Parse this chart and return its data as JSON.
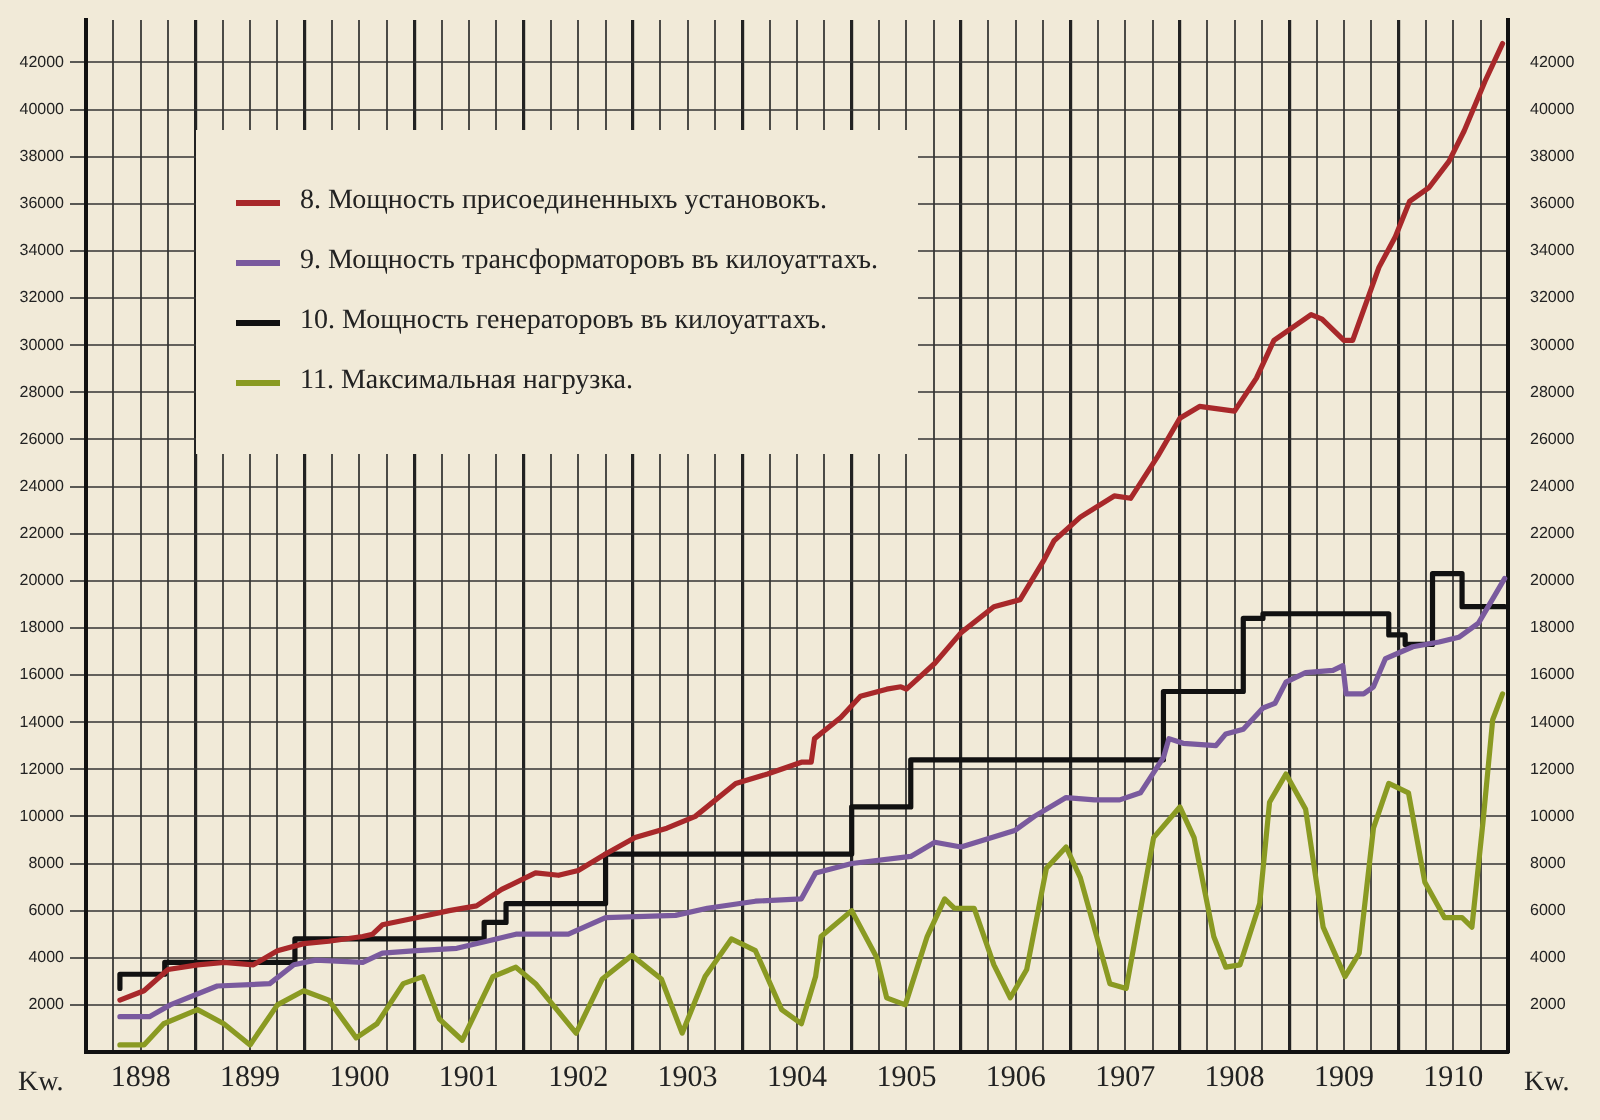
{
  "chart_data": {
    "type": "line",
    "ylabel": "Kw.",
    "y2label": "Kw.",
    "xlim": [
      1898,
      1911
    ],
    "xticks": [
      {
        "value": 1898,
        "label": null
      },
      {
        "value": 1898.25,
        "label": null
      },
      {
        "value": 1898.5,
        "label": "1898"
      },
      {
        "value": 1898.75,
        "label": null
      },
      {
        "value": 1899,
        "label": null
      },
      {
        "value": 1899.25,
        "label": null
      },
      {
        "value": 1899.5,
        "label": "1899"
      },
      {
        "value": 1899.75,
        "label": null
      },
      {
        "value": 1900,
        "label": null
      },
      {
        "value": 1900.25,
        "label": null
      },
      {
        "value": 1900.5,
        "label": "1900"
      },
      {
        "value": 1900.75,
        "label": null
      },
      {
        "value": 1901,
        "label": null
      },
      {
        "value": 1901.25,
        "label": null
      },
      {
        "value": 1901.5,
        "label": "1901"
      },
      {
        "value": 1901.75,
        "label": null
      },
      {
        "value": 1902,
        "label": null
      },
      {
        "value": 1902.25,
        "label": null
      },
      {
        "value": 1902.5,
        "label": "1902"
      },
      {
        "value": 1902.75,
        "label": null
      },
      {
        "value": 1903,
        "label": null
      },
      {
        "value": 1903.25,
        "label": null
      },
      {
        "value": 1903.5,
        "label": "1903"
      },
      {
        "value": 1903.75,
        "label": null
      },
      {
        "value": 1904,
        "label": null
      },
      {
        "value": 1904.25,
        "label": null
      },
      {
        "value": 1904.5,
        "label": "1904"
      },
      {
        "value": 1904.75,
        "label": null
      },
      {
        "value": 1905,
        "label": null
      },
      {
        "value": 1905.25,
        "label": null
      },
      {
        "value": 1905.5,
        "label": "1905"
      },
      {
        "value": 1905.75,
        "label": null
      },
      {
        "value": 1906,
        "label": null
      },
      {
        "value": 1906.25,
        "label": null
      },
      {
        "value": 1906.5,
        "label": "1906"
      },
      {
        "value": 1906.75,
        "label": null
      },
      {
        "value": 1907,
        "label": null
      },
      {
        "value": 1907.25,
        "label": null
      },
      {
        "value": 1907.5,
        "label": "1907"
      },
      {
        "value": 1907.75,
        "label": null
      },
      {
        "value": 1908,
        "label": null
      },
      {
        "value": 1908.25,
        "label": null
      },
      {
        "value": 1908.5,
        "label": "1908"
      },
      {
        "value": 1908.75,
        "label": null
      },
      {
        "value": 1909,
        "label": null
      },
      {
        "value": 1909.25,
        "label": null
      },
      {
        "value": 1909.5,
        "label": "1909"
      },
      {
        "value": 1909.75,
        "label": null
      },
      {
        "value": 1910,
        "label": null
      },
      {
        "value": 1910.25,
        "label": null
      },
      {
        "value": 1910.5,
        "label": "1910"
      },
      {
        "value": 1910.75,
        "label": null
      },
      {
        "value": 1911,
        "label": null
      }
    ],
    "ylim": [
      0,
      43800
    ],
    "yticks": [
      2000,
      4000,
      6000,
      8000,
      10000,
      12000,
      14000,
      16000,
      18000,
      20000,
      22000,
      24000,
      26000,
      28000,
      30000,
      32000,
      34000,
      36000,
      38000,
      40000,
      42000
    ],
    "y2lim": [
      0,
      43800
    ],
    "y2ticks": [
      2000,
      4000,
      6000,
      8000,
      10000,
      12000,
      14000,
      16000,
      18000,
      20000,
      22000,
      24000,
      26000,
      28000,
      30000,
      32000,
      34000,
      36000,
      38000,
      40000,
      42000
    ],
    "grid": true,
    "legend": "top left",
    "marker": "none",
    "line_style": "solid",
    "series": [
      {
        "name": "8. Мощность присоединенныхъ установокъ.",
        "type": "line",
        "color": "#a8282a",
        "x": [
          1898.31,
          1898.53,
          1898.75,
          1899.02,
          1899.26,
          1899.53,
          1899.75,
          1899.99,
          1900.22,
          1900.53,
          1900.62,
          1900.71,
          1901.02,
          1901.32,
          1901.57,
          1901.8,
          1902.11,
          1902.32,
          1902.5,
          1902.75,
          1903.02,
          1903.31,
          1903.57,
          1903.94,
          1904.23,
          1904.54,
          1904.63,
          1904.66,
          1904.9,
          1905.08,
          1905.32,
          1905.45,
          1905.5,
          1905.76,
          1906.0,
          1906.3,
          1906.54,
          1906.76,
          1906.85,
          1907.09,
          1907.4,
          1907.55,
          1907.8,
          1908.0,
          1908.18,
          1908.5,
          1908.7,
          1908.86,
          1909.2,
          1909.3,
          1909.5,
          1909.58,
          1909.82,
          1909.97,
          1910.1,
          1910.28,
          1910.46,
          1910.6,
          1910.79,
          1910.95
        ],
        "values": [
          2200,
          2600,
          3500,
          3700,
          3800,
          3700,
          4300,
          4600,
          4700,
          4900,
          5000,
          5400,
          5700,
          6000,
          6200,
          6900,
          7600,
          7500,
          7700,
          8400,
          9100,
          9500,
          10000,
          11400,
          11800,
          12300,
          12300,
          13300,
          14200,
          15100,
          15400,
          15500,
          15400,
          16500,
          17800,
          18900,
          19200,
          20900,
          21700,
          22700,
          23600,
          23500,
          25300,
          26900,
          27400,
          27200,
          28600,
          30200,
          31300,
          31100,
          30200,
          30200,
          33300,
          34600,
          36100,
          36700,
          37800,
          39100,
          41200,
          42800
        ]
      },
      {
        "name": "9. Мощность трансформаторовъ въ килоуаттахъ.",
        "type": "line",
        "color": "#7a5a9e",
        "x": [
          1898.31,
          1898.58,
          1898.77,
          1899.2,
          1899.68,
          1899.9,
          1900.1,
          1900.53,
          1900.71,
          1901.02,
          1901.39,
          1901.75,
          1901.93,
          1902.41,
          1902.75,
          1903.39,
          1903.68,
          1904.12,
          1904.54,
          1904.67,
          1905.0,
          1905.54,
          1905.76,
          1906.0,
          1906.49,
          1906.67,
          1906.96,
          1907.22,
          1907.45,
          1907.64,
          1907.85,
          1907.9,
          1908.03,
          1908.33,
          1908.42,
          1908.58,
          1908.76,
          1908.87,
          1908.97,
          1909.15,
          1909.4,
          1909.49,
          1909.52,
          1909.68,
          1909.77,
          1909.88,
          1910.13,
          1910.37,
          1910.55,
          1910.73,
          1910.97
        ],
        "values": [
          1500,
          1500,
          2000,
          2800,
          2900,
          3700,
          3900,
          3800,
          4200,
          4300,
          4400,
          4800,
          5000,
          5000,
          5700,
          5800,
          6100,
          6400,
          6500,
          7600,
          8000,
          8300,
          8900,
          8700,
          9400,
          10000,
          10800,
          10700,
          10700,
          11000,
          12500,
          13300,
          13100,
          13000,
          13500,
          13700,
          14600,
          14800,
          15700,
          16100,
          16200,
          16400,
          15200,
          15200,
          15500,
          16700,
          17200,
          17400,
          17600,
          18200,
          20100
        ]
      },
      {
        "name": "10. Мощность генераторовъ въ килоуаттахъ.",
        "type": "step",
        "color": "#111111",
        "x": [
          1898.31,
          1898.72,
          1899.91,
          1901.64,
          1901.84,
          1902.75,
          1905.0,
          1905.54,
          1907.85,
          1908.58,
          1908.76,
          1909.91,
          1910.06,
          1910.31,
          1910.58,
          1910.64,
          1910.97
        ],
        "values": [
          2700,
          3300,
          3800,
          4800,
          5500,
          6300,
          8400,
          10400,
          12400,
          15300,
          18400,
          18600,
          17700,
          17300,
          20300,
          18900,
          18900
        ]
      },
      {
        "name": "11. Максимальная нагрузка.",
        "type": "line",
        "color": "#8a9a22",
        "x": [
          1898.31,
          1898.53,
          1898.71,
          1899.02,
          1899.26,
          1899.5,
          1899.75,
          1899.99,
          1900.22,
          1900.47,
          1900.66,
          1900.9,
          1901.08,
          1901.23,
          1901.44,
          1901.72,
          1901.93,
          1902.11,
          1902.48,
          1902.72,
          1902.99,
          1903.26,
          1903.45,
          1903.66,
          1903.9,
          1904.12,
          1904.36,
          1904.54,
          1904.67,
          1904.72,
          1905.0,
          1905.23,
          1905.32,
          1905.49,
          1905.69,
          1905.85,
          1905.94,
          1906.12,
          1906.3,
          1906.45,
          1906.6,
          1906.78,
          1906.96,
          1907.09,
          1907.36,
          1907.51,
          1907.76,
          1908.0,
          1908.13,
          1908.31,
          1908.42,
          1908.55,
          1908.73,
          1908.82,
          1908.97,
          1909.15,
          1909.31,
          1909.51,
          1909.64,
          1909.77,
          1909.91,
          1910.09,
          1910.24,
          1910.42,
          1910.58,
          1910.67,
          1910.77,
          1910.86,
          1910.95
        ],
        "values": [
          300,
          300,
          1200,
          1800,
          1200,
          300,
          2000,
          2600,
          2200,
          600,
          1200,
          2900,
          3200,
          1400,
          500,
          3200,
          3600,
          2900,
          800,
          3100,
          4100,
          3100,
          800,
          3200,
          4800,
          4300,
          1800,
          1200,
          3200,
          4900,
          6000,
          4000,
          2300,
          2000,
          4900,
          6500,
          6100,
          6100,
          3700,
          2300,
          3500,
          7800,
          8700,
          7400,
          2900,
          2700,
          9100,
          10400,
          9100,
          4900,
          3600,
          3700,
          6300,
          10600,
          11800,
          10300,
          5300,
          3200,
          4200,
          9500,
          11400,
          11000,
          7200,
          5700,
          5700,
          5300,
          9700,
          14100,
          15200
        ]
      }
    ]
  }
}
